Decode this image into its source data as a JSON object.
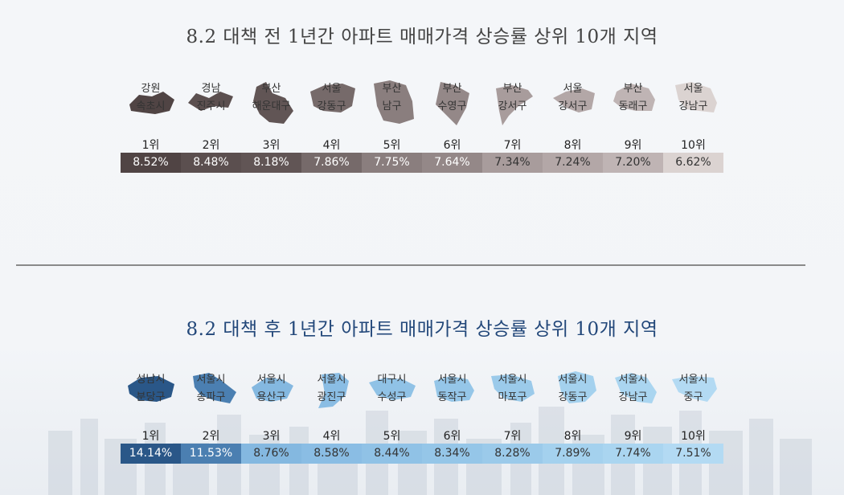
{
  "chart_data": [
    {
      "type": "table",
      "title": "8.2 대책 전 1년간 아파트 매매가격 상승률 상위 10개 지역",
      "categories": [
        [
          "강원",
          "속초시"
        ],
        [
          "경남",
          "진주시"
        ],
        [
          "부산",
          "해운대구"
        ],
        [
          "서울",
          "강동구"
        ],
        [
          "부산",
          "남구"
        ],
        [
          "부산",
          "수영구"
        ],
        [
          "부산",
          "강서구"
        ],
        [
          "서울",
          "강서구"
        ],
        [
          "부산",
          "동래구"
        ],
        [
          "서울",
          "강남구"
        ]
      ],
      "ranks": [
        "1위",
        "2위",
        "3위",
        "4위",
        "5위",
        "6위",
        "7위",
        "8위",
        "9위",
        "10위"
      ],
      "values": [
        8.52,
        8.48,
        8.18,
        7.86,
        7.75,
        7.64,
        7.34,
        7.24,
        7.2,
        6.62
      ],
      "labels": [
        "8.52%",
        "8.48%",
        "8.18%",
        "7.86%",
        "7.75%",
        "7.64%",
        "7.34%",
        "7.24%",
        "7.20%",
        "6.62%"
      ],
      "colors": [
        "#504444",
        "#5b4f4f",
        "#615555",
        "#766a6a",
        "#8a7e7e",
        "#948888",
        "#a89c9c",
        "#b3a7a7",
        "#bfb4b4",
        "#dbd3d1"
      ],
      "text_colors": [
        "#ffffff",
        "#ffffff",
        "#ffffff",
        "#ffffff",
        "#ffffff",
        "#ffffff",
        "#333333",
        "#333333",
        "#333333",
        "#333333"
      ]
    },
    {
      "type": "table",
      "title": "8.2 대책 후 1년간 아파트 매매가격 상승률 상위 10개 지역",
      "categories": [
        [
          "성남시",
          "분당구"
        ],
        [
          "서울시",
          "송파구"
        ],
        [
          "서울시",
          "용산구"
        ],
        [
          "서울시",
          "광진구"
        ],
        [
          "대구시",
          "수성구"
        ],
        [
          "서울시",
          "동작구"
        ],
        [
          "서울시",
          "마포구"
        ],
        [
          "서울시",
          "강동구"
        ],
        [
          "서울시",
          "강남구"
        ],
        [
          "서울시",
          "중구"
        ]
      ],
      "ranks": [
        "1위",
        "2위",
        "3위",
        "4위",
        "5위",
        "6위",
        "7위",
        "8위",
        "9위",
        "10위"
      ],
      "values": [
        14.14,
        11.53,
        8.76,
        8.58,
        8.44,
        8.34,
        8.28,
        7.89,
        7.74,
        7.51
      ],
      "labels": [
        "14.14%",
        "11.53%",
        "8.76%",
        "8.58%",
        "8.44%",
        "8.34%",
        "8.28%",
        "7.89%",
        "7.74%",
        "7.51%"
      ],
      "colors": [
        "#2a5788",
        "#4b7fb1",
        "#84b8e0",
        "#8abde4",
        "#90c2e6",
        "#95c6e8",
        "#9bcaea",
        "#a4d1ee",
        "#aad5f0",
        "#b3daf3"
      ],
      "text_colors": [
        "#ffffff",
        "#ffffff",
        "#333333",
        "#333333",
        "#333333",
        "#333333",
        "#333333",
        "#333333",
        "#333333",
        "#333333"
      ]
    }
  ]
}
